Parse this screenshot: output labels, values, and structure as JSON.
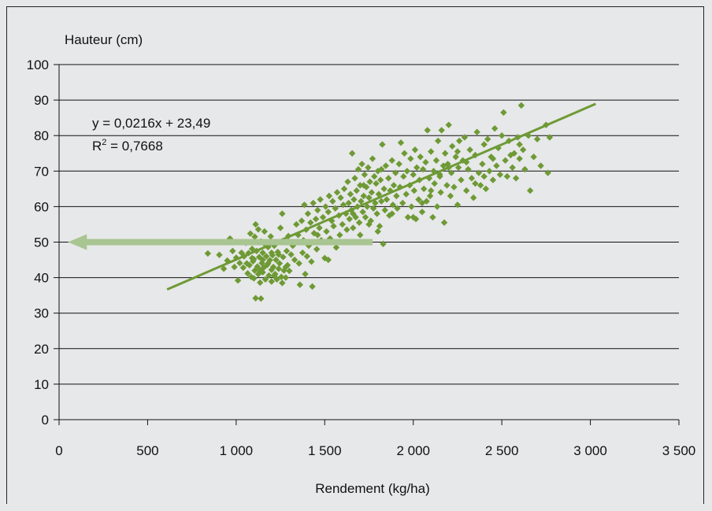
{
  "chart_data": {
    "type": "scatter",
    "title": "",
    "ylabel": "Hauteur (cm)",
    "xlabel": "Rendement (kg/ha)",
    "xlim": [
      0,
      3500
    ],
    "ylim": [
      0,
      100
    ],
    "x_ticks": [
      {
        "value": 0,
        "label": "0"
      },
      {
        "value": 500,
        "label": "500"
      },
      {
        "value": 1000,
        "label": "1 000"
      },
      {
        "value": 1500,
        "label": "1 500"
      },
      {
        "value": 2000,
        "label": "2 000"
      },
      {
        "value": 2500,
        "label": "2 500"
      },
      {
        "value": 3000,
        "label": "3 000"
      },
      {
        "value": 3500,
        "label": "3 500"
      }
    ],
    "y_ticks": [
      {
        "value": 0,
        "label": "0"
      },
      {
        "value": 10,
        "label": "10"
      },
      {
        "value": 20,
        "label": "20"
      },
      {
        "value": 30,
        "label": "30"
      },
      {
        "value": 40,
        "label": "40"
      },
      {
        "value": 50,
        "label": "50"
      },
      {
        "value": 60,
        "label": "60"
      },
      {
        "value": 70,
        "label": "70"
      },
      {
        "value": 80,
        "label": "80"
      },
      {
        "value": 90,
        "label": "90"
      },
      {
        "value": 100,
        "label": "100"
      }
    ],
    "grid": "horizontal",
    "marker_color": "#6e9a35",
    "trendline": {
      "slope": 0.0216,
      "intercept": 23.49,
      "x_range": [
        610,
        3030
      ],
      "equation": "y = 0,0216x + 23,49",
      "r2_prefix": "R",
      "r2_sup": "2",
      "r2_value": " = 0,7668",
      "color": "#6e9a35"
    },
    "arrow": {
      "from": [
        1770,
        50
      ],
      "to": [
        50,
        50
      ],
      "color": "#a9c592"
    },
    "points": [
      [
        840,
        46.8
      ],
      [
        905,
        46.4
      ],
      [
        930,
        42.5
      ],
      [
        950,
        44.8
      ],
      [
        965,
        51.0
      ],
      [
        980,
        47.5
      ],
      [
        990,
        43.0
      ],
      [
        1000,
        45.6
      ],
      [
        1010,
        39.2
      ],
      [
        1020,
        44.1
      ],
      [
        1030,
        47.0
      ],
      [
        1040,
        42.8
      ],
      [
        1045,
        46.0
      ],
      [
        1055,
        49.8
      ],
      [
        1060,
        44.0
      ],
      [
        1065,
        41.2
      ],
      [
        1070,
        46.9
      ],
      [
        1075,
        43.5
      ],
      [
        1080,
        52.4
      ],
      [
        1085,
        40.2
      ],
      [
        1090,
        48.1
      ],
      [
        1095,
        44.6
      ],
      [
        1100,
        45.2
      ],
      [
        1100,
        39.8
      ],
      [
        1105,
        42.0
      ],
      [
        1110,
        55.0
      ],
      [
        1110,
        34.2
      ],
      [
        1115,
        47.5
      ],
      [
        1120,
        43.1
      ],
      [
        1125,
        53.6
      ],
      [
        1125,
        41.0
      ],
      [
        1130,
        45.8
      ],
      [
        1135,
        38.6
      ],
      [
        1140,
        50.2
      ],
      [
        1140,
        34.1
      ],
      [
        1145,
        44.1
      ],
      [
        1150,
        47.0
      ],
      [
        1150,
        41.5
      ],
      [
        1155,
        42.8
      ],
      [
        1160,
        53.0
      ],
      [
        1165,
        39.5
      ],
      [
        1170,
        46.0
      ],
      [
        1175,
        43.6
      ],
      [
        1180,
        48.6
      ],
      [
        1185,
        40.6
      ],
      [
        1190,
        44.9
      ],
      [
        1195,
        51.6
      ],
      [
        1200,
        42.2
      ],
      [
        1200,
        38.9
      ],
      [
        1205,
        46.3
      ],
      [
        1210,
        43.0
      ],
      [
        1215,
        49.0
      ],
      [
        1220,
        41.0
      ],
      [
        1225,
        45.0
      ],
      [
        1230,
        39.5
      ],
      [
        1235,
        47.2
      ],
      [
        1240,
        42.5
      ],
      [
        1245,
        44.0
      ],
      [
        1250,
        54.0
      ],
      [
        1255,
        40.2
      ],
      [
        1260,
        58.0
      ],
      [
        1265,
        45.8
      ],
      [
        1270,
        42.0
      ],
      [
        1275,
        50.0
      ],
      [
        1280,
        40.0
      ],
      [
        1285,
        47.5
      ],
      [
        1290,
        43.5
      ],
      [
        1295,
        51.7
      ],
      [
        1300,
        41.9
      ],
      [
        1310,
        46.5
      ],
      [
        1320,
        49.0
      ],
      [
        1330,
        45.0
      ],
      [
        1340,
        55.0
      ],
      [
        1350,
        52.0
      ],
      [
        1355,
        44.0
      ],
      [
        1360,
        38.0
      ],
      [
        1370,
        56.0
      ],
      [
        1375,
        47.0
      ],
      [
        1380,
        50.5
      ],
      [
        1385,
        60.5
      ],
      [
        1390,
        41.0
      ],
      [
        1395,
        53.5
      ],
      [
        1400,
        46.0
      ],
      [
        1405,
        58.0
      ],
      [
        1410,
        49.0
      ],
      [
        1420,
        55.5
      ],
      [
        1425,
        44.5
      ],
      [
        1430,
        37.5
      ],
      [
        1435,
        61.0
      ],
      [
        1440,
        52.5
      ],
      [
        1450,
        56.5
      ],
      [
        1455,
        48.0
      ],
      [
        1460,
        59.0
      ],
      [
        1470,
        54.0
      ],
      [
        1475,
        62.0
      ],
      [
        1480,
        50.5
      ],
      [
        1490,
        57.0
      ],
      [
        1500,
        45.5
      ],
      [
        1505,
        60.0
      ],
      [
        1510,
        53.0
      ],
      [
        1520,
        58.5
      ],
      [
        1525,
        63.0
      ],
      [
        1530,
        51.0
      ],
      [
        1540,
        56.0
      ],
      [
        1545,
        61.5
      ],
      [
        1550,
        54.5
      ],
      [
        1560,
        59.5
      ],
      [
        1565,
        48.5
      ],
      [
        1570,
        64.0
      ],
      [
        1580,
        57.5
      ],
      [
        1585,
        52.0
      ],
      [
        1590,
        62.5
      ],
      [
        1600,
        55.0
      ],
      [
        1605,
        60.5
      ],
      [
        1610,
        65.0
      ],
      [
        1620,
        58.0
      ],
      [
        1625,
        53.5
      ],
      [
        1630,
        67.0
      ],
      [
        1635,
        61.0
      ],
      [
        1640,
        56.5
      ],
      [
        1645,
        63.5
      ],
      [
        1650,
        59.0
      ],
      [
        1655,
        75.0
      ],
      [
        1660,
        54.0
      ],
      [
        1665,
        62.0
      ],
      [
        1670,
        68.0
      ],
      [
        1675,
        57.0
      ],
      [
        1680,
        64.5
      ],
      [
        1685,
        60.0
      ],
      [
        1690,
        70.5
      ],
      [
        1695,
        55.5
      ],
      [
        1700,
        66.0
      ],
      [
        1705,
        61.5
      ],
      [
        1710,
        72.0
      ],
      [
        1715,
        58.5
      ],
      [
        1720,
        63.0
      ],
      [
        1725,
        69.0
      ],
      [
        1730,
        57.0
      ],
      [
        1735,
        65.5
      ],
      [
        1740,
        60.0
      ],
      [
        1745,
        71.0
      ],
      [
        1750,
        62.5
      ],
      [
        1755,
        67.0
      ],
      [
        1760,
        56.0
      ],
      [
        1765,
        64.0
      ],
      [
        1770,
        73.5
      ],
      [
        1775,
        59.5
      ],
      [
        1780,
        68.5
      ],
      [
        1785,
        61.0
      ],
      [
        1790,
        66.5
      ],
      [
        1795,
        58.0
      ],
      [
        1800,
        70.0
      ],
      [
        1805,
        63.5
      ],
      [
        1810,
        54.5
      ],
      [
        1815,
        67.5
      ],
      [
        1820,
        61.5
      ],
      [
        1825,
        77.5
      ],
      [
        1830,
        49.5
      ],
      [
        1835,
        65.0
      ],
      [
        1840,
        59.0
      ],
      [
        1845,
        71.5
      ],
      [
        1850,
        62.0
      ],
      [
        1860,
        68.0
      ],
      [
        1865,
        57.5
      ],
      [
        1870,
        64.5
      ],
      [
        1880,
        73.0
      ],
      [
        1885,
        60.5
      ],
      [
        1890,
        66.0
      ],
      [
        1900,
        69.5
      ],
      [
        1905,
        63.0
      ],
      [
        1910,
        59.5
      ],
      [
        1920,
        72.0
      ],
      [
        1925,
        65.5
      ],
      [
        1930,
        78.0
      ],
      [
        1940,
        61.0
      ],
      [
        1945,
        68.5
      ],
      [
        1950,
        75.0
      ],
      [
        1960,
        63.5
      ],
      [
        1965,
        70.0
      ],
      [
        1970,
        57.0
      ],
      [
        1980,
        66.0
      ],
      [
        1985,
        73.5
      ],
      [
        1990,
        60.0
      ],
      [
        2000,
        69.0
      ],
      [
        2005,
        64.5
      ],
      [
        2010,
        76.0
      ],
      [
        2015,
        56.5
      ],
      [
        2020,
        71.0
      ],
      [
        2030,
        62.0
      ],
      [
        2035,
        67.5
      ],
      [
        2040,
        74.0
      ],
      [
        2050,
        58.5
      ],
      [
        2055,
        70.5
      ],
      [
        2060,
        65.0
      ],
      [
        2070,
        72.5
      ],
      [
        2075,
        61.5
      ],
      [
        2080,
        81.5
      ],
      [
        2090,
        68.0
      ],
      [
        2095,
        63.0
      ],
      [
        2100,
        75.5
      ],
      [
        2110,
        57.0
      ],
      [
        2115,
        70.0
      ],
      [
        2120,
        66.5
      ],
      [
        2130,
        73.0
      ],
      [
        2135,
        60.0
      ],
      [
        2140,
        78.5
      ],
      [
        2150,
        68.5
      ],
      [
        2155,
        64.0
      ],
      [
        2160,
        81.5
      ],
      [
        2170,
        71.5
      ],
      [
        2175,
        55.5
      ],
      [
        2180,
        75.0
      ],
      [
        2190,
        66.0
      ],
      [
        2195,
        72.0
      ],
      [
        2200,
        83.0
      ],
      [
        2210,
        63.0
      ],
      [
        2215,
        69.5
      ],
      [
        2220,
        77.0
      ],
      [
        2230,
        65.5
      ],
      [
        2240,
        74.0
      ],
      [
        2250,
        60.5
      ],
      [
        2255,
        71.0
      ],
      [
        2260,
        78.5
      ],
      [
        2270,
        67.5
      ],
      [
        2280,
        73.0
      ],
      [
        2290,
        79.5
      ],
      [
        2300,
        64.5
      ],
      [
        2310,
        70.5
      ],
      [
        2320,
        76.0
      ],
      [
        2330,
        68.0
      ],
      [
        2340,
        62.5
      ],
      [
        2350,
        74.5
      ],
      [
        2360,
        81.0
      ],
      [
        2370,
        69.5
      ],
      [
        2380,
        66.0
      ],
      [
        2390,
        72.0
      ],
      [
        2400,
        77.5
      ],
      [
        2410,
        65.0
      ],
      [
        2420,
        79.0
      ],
      [
        2430,
        70.0
      ],
      [
        2440,
        74.0
      ],
      [
        2450,
        67.5
      ],
      [
        2460,
        82.0
      ],
      [
        2470,
        71.5
      ],
      [
        2480,
        76.5
      ],
      [
        2490,
        69.0
      ],
      [
        2500,
        80.0
      ],
      [
        2510,
        86.5
      ],
      [
        2520,
        73.0
      ],
      [
        2530,
        68.5
      ],
      [
        2540,
        78.5
      ],
      [
        2560,
        71.0
      ],
      [
        2570,
        75.0
      ],
      [
        2580,
        68.0
      ],
      [
        2590,
        79.5
      ],
      [
        2600,
        73.5
      ],
      [
        2610,
        88.5
      ],
      [
        2620,
        76.0
      ],
      [
        2630,
        70.5
      ],
      [
        2650,
        80.0
      ],
      [
        2660,
        64.5
      ],
      [
        2680,
        74.0
      ],
      [
        2700,
        79.0
      ],
      [
        2720,
        71.5
      ],
      [
        2750,
        83.0
      ],
      [
        2760,
        69.5
      ],
      [
        2770,
        79.5
      ],
      [
        1105,
        51.5
      ],
      [
        1150,
        45.0
      ],
      [
        1200,
        47.0
      ],
      [
        1260,
        38.5
      ],
      [
        1180,
        44.0
      ],
      [
        1135,
        42.0
      ],
      [
        1215,
        40.5
      ],
      [
        1090,
        45.5
      ],
      [
        1160,
        49.5
      ],
      [
        1240,
        46.5
      ],
      [
        1280,
        43.0
      ],
      [
        1520,
        45.0
      ],
      [
        1460,
        52.0
      ],
      [
        1620,
        50.0
      ],
      [
        1700,
        52.0
      ],
      [
        1750,
        55.0
      ],
      [
        1800,
        53.0
      ],
      [
        1880,
        58.0
      ],
      [
        2000,
        57.0
      ],
      [
        2050,
        61.0
      ],
      [
        2100,
        64.5
      ],
      [
        2150,
        69.0
      ],
      [
        2200,
        71.0
      ],
      [
        2250,
        75.5
      ],
      [
        2300,
        72.5
      ],
      [
        2350,
        66.5
      ],
      [
        2400,
        68.5
      ],
      [
        2450,
        73.5
      ],
      [
        2550,
        74.5
      ],
      [
        2600,
        77.5
      ],
      [
        1660,
        58.0
      ],
      [
        1720,
        66.0
      ],
      [
        1820,
        70.5
      ]
    ]
  }
}
